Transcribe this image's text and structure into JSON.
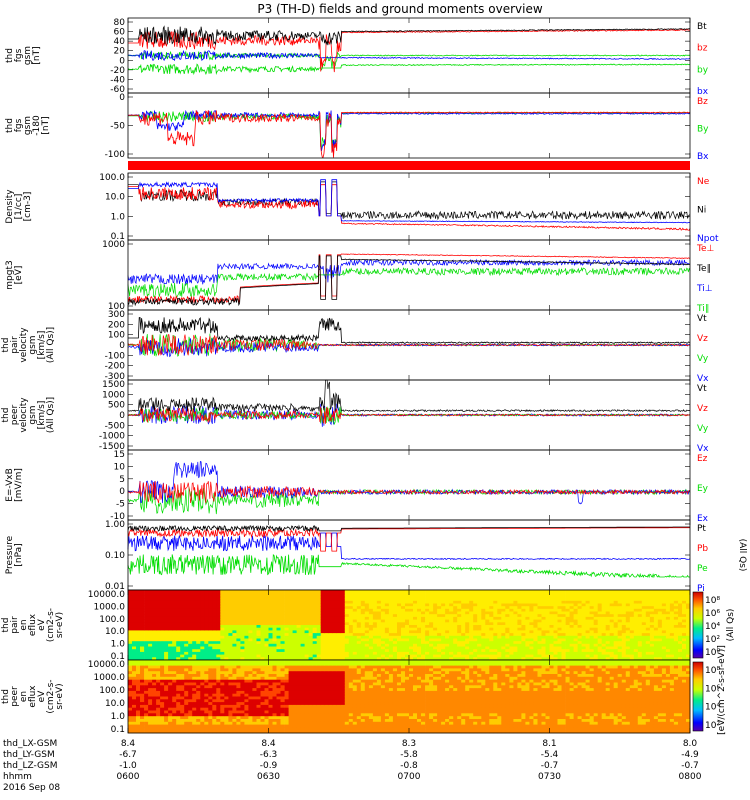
{
  "title": "P3 (TH-D) fields and ground moments overview",
  "colors": {
    "black": "#000000",
    "red": "#ff0000",
    "green": "#00dd00",
    "blue": "#0000ff",
    "orange": "#ff7f00"
  },
  "chart_data": {
    "type": "line",
    "x_time_ticks": [
      "0600",
      "0630",
      "0700",
      "0730",
      "0800"
    ],
    "ephemeris": {
      "labels": [
        "thd_LX-GSM",
        "thd_LY-GSM",
        "thd_LZ-GSM",
        "hhmm",
        "2016 Sep 08"
      ],
      "x": [
        "8.4",
        "8.4",
        "8.3",
        "8.1",
        "8.0"
      ],
      "y": [
        "-6.7",
        "-6.3",
        "-5.8",
        "-5.4",
        "-4.9"
      ],
      "z": [
        "-1.0",
        "-0.9",
        "-0.8",
        "-0.7",
        "-0.7"
      ]
    },
    "panels": [
      {
        "id": "fgs-gsm",
        "ylabel": [
          "thd",
          "fgs",
          "gsm",
          "[nT]"
        ],
        "ylim": [
          -60,
          90
        ],
        "yticks": [
          "80",
          "60",
          "40",
          "20",
          "0",
          "-20",
          "-40",
          "-60"
        ],
        "legend": [
          {
            "name": "Bt",
            "color": "black"
          },
          {
            "name": "bz",
            "color": "red"
          },
          {
            "name": "by",
            "color": "green"
          },
          {
            "name": "bx",
            "color": "blue"
          }
        ]
      },
      {
        "id": "fgs-gsm-detail",
        "ylabel": [
          "thd",
          "fgs",
          "gsm",
          "-180",
          "[nT]"
        ],
        "ylim": [
          -120,
          50
        ],
        "yticks": [
          "0",
          "-50",
          "-100"
        ],
        "legend": [
          {
            "name": "Bz",
            "color": "red"
          },
          {
            "name": "By",
            "color": "green"
          },
          {
            "name": "Bx",
            "color": "blue"
          }
        ]
      },
      {
        "id": "density",
        "ylabel": [
          "Density",
          "[1/cc]",
          "[cm-3]"
        ],
        "log": true,
        "yticks": [
          "100.0",
          "10.0",
          "1.0",
          "0.1"
        ],
        "legend": [
          {
            "name": "Ne",
            "color": "red"
          },
          {
            "name": "Ni",
            "color": "black"
          },
          {
            "name": "Npot",
            "color": "blue"
          }
        ]
      },
      {
        "id": "temperature",
        "ylabel": [
          "mpgt3",
          "[eV]"
        ],
        "log": true,
        "yticks": [
          "1000",
          "100"
        ],
        "legend": [
          {
            "name": "Te⊥",
            "color": "red"
          },
          {
            "name": "Te∥",
            "color": "black"
          },
          {
            "name": "Ti⊥",
            "color": "blue"
          },
          {
            "name": "Ti∥",
            "color": "green"
          }
        ]
      },
      {
        "id": "ion-velocity",
        "ylabel": [
          "thd",
          "pair",
          "velocity",
          "gsm",
          "[km/s]",
          "(All Qs)]"
        ],
        "ylim": [
          -300,
          300
        ],
        "yticks": [
          "300",
          "200",
          "100",
          "0",
          "-100",
          "-200",
          "-300"
        ],
        "legend": [
          {
            "name": "Vt",
            "color": "black"
          },
          {
            "name": "Vz",
            "color": "red"
          },
          {
            "name": "Vy",
            "color": "green"
          },
          {
            "name": "Vx",
            "color": "blue"
          }
        ]
      },
      {
        "id": "electron-velocity",
        "ylabel": [
          "thd",
          "peer",
          "velocity",
          "gsm",
          "[km/s]",
          "(All Qs)]"
        ],
        "ylim": [
          -1500,
          1500
        ],
        "yticks": [
          "1500",
          "1000",
          "500",
          "0",
          "-500",
          "-1000",
          "-1500"
        ],
        "legend": [
          {
            "name": "Vt",
            "color": "black"
          },
          {
            "name": "Vz",
            "color": "red"
          },
          {
            "name": "Vy",
            "color": "green"
          },
          {
            "name": "Vx",
            "color": "blue"
          }
        ]
      },
      {
        "id": "efield",
        "ylabel": [
          "E=-VxB",
          "[mV/m]"
        ],
        "ylim": [
          -10,
          15
        ],
        "yticks": [
          "15",
          "10",
          "5",
          "0",
          "-5",
          "-10"
        ],
        "legend": [
          {
            "name": "Ez",
            "color": "red"
          },
          {
            "name": "Ey",
            "color": "green"
          },
          {
            "name": "Ex",
            "color": "blue"
          }
        ]
      },
      {
        "id": "pressure",
        "ylabel": [
          "Pressure",
          "[nPa]"
        ],
        "log": true,
        "yticks": [
          "1.00",
          "0.10",
          "0.01"
        ],
        "legend": [
          {
            "name": "Pt",
            "color": "black"
          },
          {
            "name": "Pb",
            "color": "red"
          },
          {
            "name": "Pe",
            "color": "green"
          },
          {
            "name": "Pi",
            "color": "blue"
          }
        ],
        "side_note": "(All Qs)"
      },
      {
        "id": "ion-spectrogram",
        "type": "heatmap",
        "ylabel": [
          "thd",
          "pair",
          "en",
          "eflux",
          "eV",
          "(cm2-s-",
          "sr-eV)"
        ],
        "yticks": [
          "10000.0",
          "1000.0",
          "100.0",
          "10.0",
          "1.0",
          "0.1"
        ],
        "colorbar": [
          "10⁸",
          "10⁶",
          "10⁴",
          "10²",
          "10⁰"
        ]
      },
      {
        "id": "electron-spectrogram",
        "type": "heatmap",
        "ylabel": [
          "thd",
          "peer",
          "en",
          "eflux",
          "eV",
          "(cm2-s-",
          "sr-eV)"
        ],
        "yticks": [
          "10000.0",
          "1000.0",
          "100.0",
          "10.0",
          "1.0",
          "0.1"
        ],
        "colorbar": [
          "10⁸",
          "10⁶",
          "10⁴",
          "10²"
        ]
      }
    ],
    "colorbar_label": "[eV/(cm^2-s-sr-eV)]",
    "colorbar_ion_label": "(All Qs)"
  }
}
